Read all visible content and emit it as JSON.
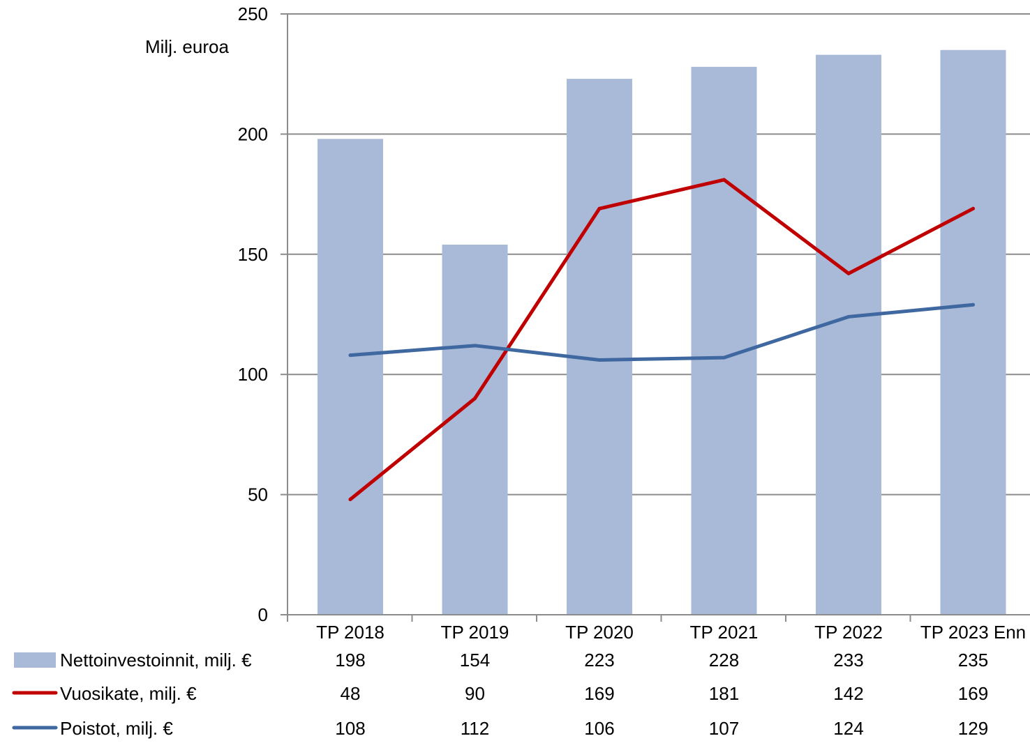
{
  "chart_data": {
    "type": "bar",
    "categories": [
      "TP 2018",
      "TP 2019",
      "TP 2020",
      "TP 2021",
      "TP 2022",
      "TP 2023 Enn"
    ],
    "ylabel": "Milj. euroa",
    "ylim": [
      0,
      250
    ],
    "yticks": [
      0,
      50,
      100,
      150,
      200,
      250
    ],
    "grid": true,
    "legend": "data-table-bottom",
    "series": [
      {
        "name": "Nettoinvestoinnit, milj. €",
        "type": "bar",
        "color": "#a9b9d8",
        "values": [
          198,
          154,
          223,
          228,
          233,
          235
        ]
      },
      {
        "name": "Vuosikate, milj. €",
        "type": "line",
        "color": "#c00000",
        "values": [
          48,
          90,
          169,
          181,
          142,
          169
        ]
      },
      {
        "name": "Poistot, milj. €",
        "type": "line",
        "color": "#3f68a0",
        "values": [
          108,
          112,
          106,
          107,
          124,
          129
        ]
      }
    ]
  }
}
